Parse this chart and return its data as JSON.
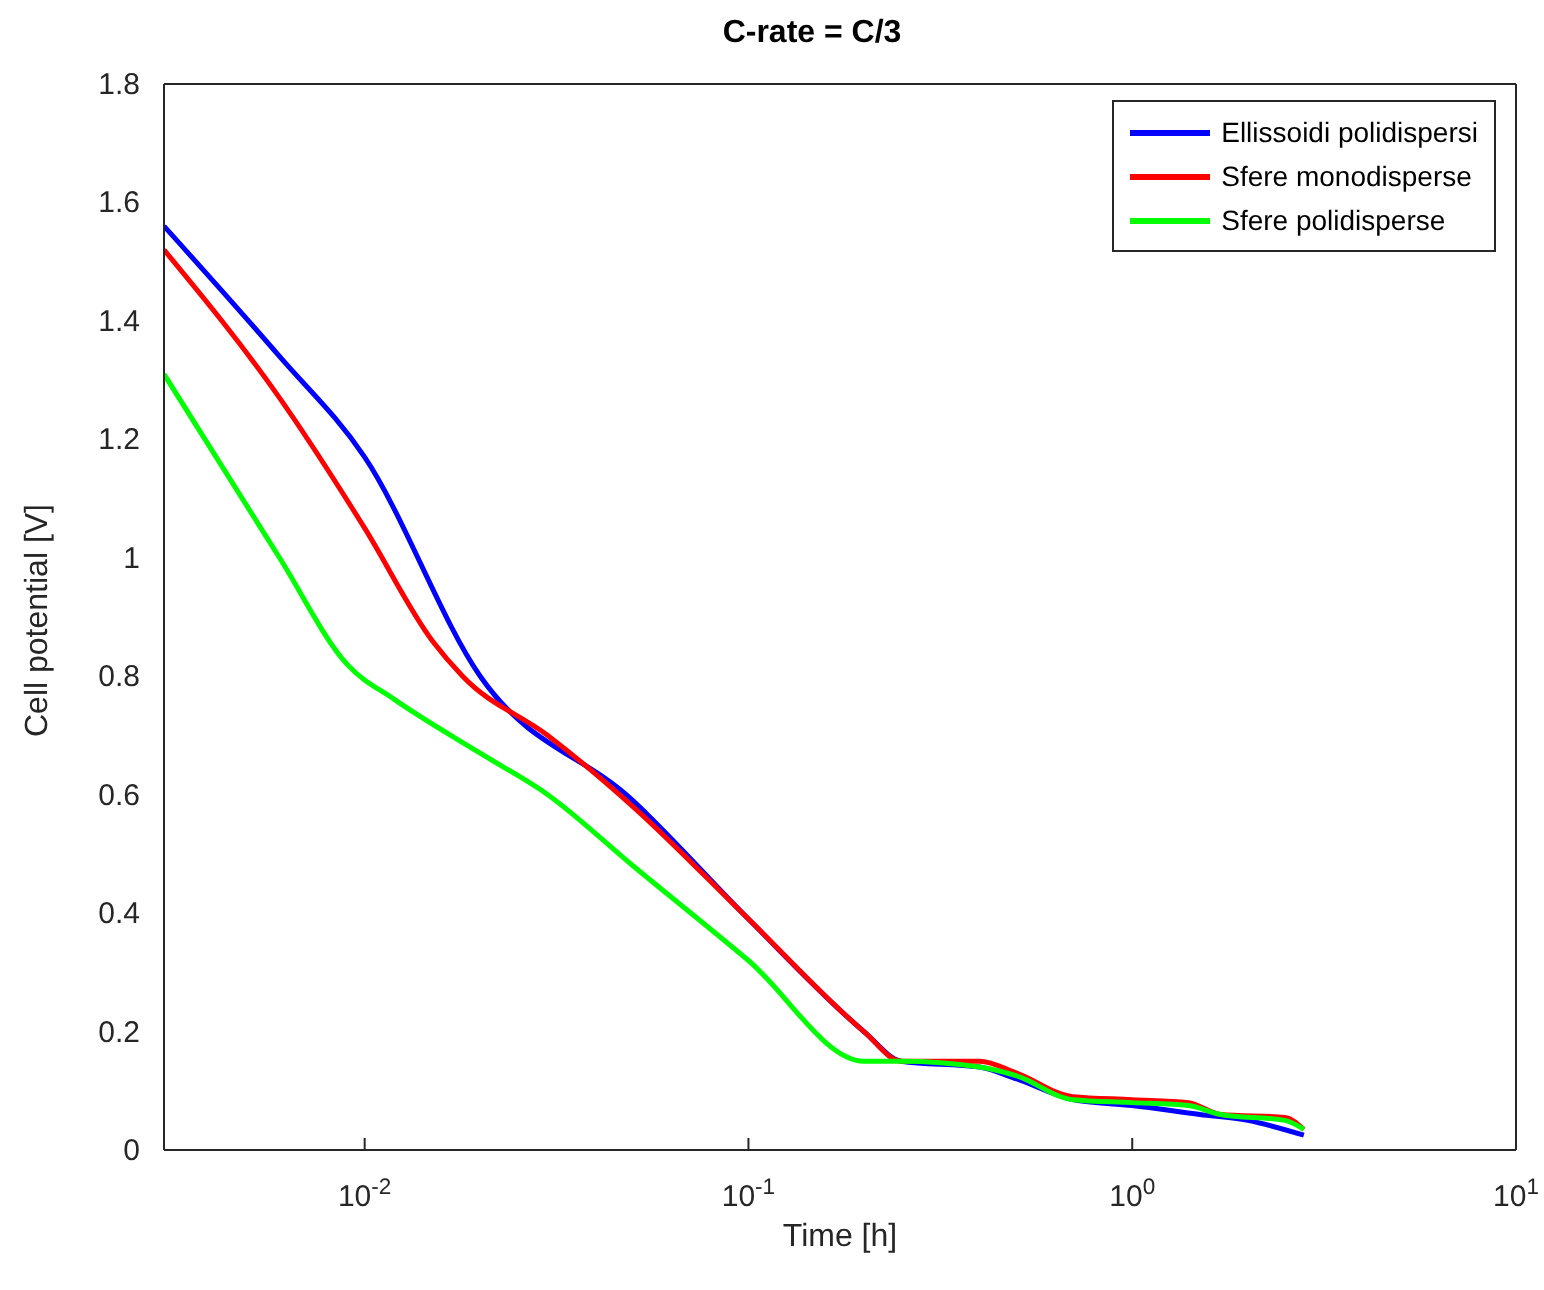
{
  "chart_data": {
    "type": "line",
    "title": "C-rate = C/3",
    "xlabel": "Time [h]",
    "ylabel": "Cell potential [V]",
    "log": "x",
    "xlim": [
      0.003,
      10
    ],
    "xticks": [
      {
        "value": 0.01,
        "label": "10$^{-2}$"
      },
      {
        "value": 0.1,
        "label": "10$^{-1}$"
      },
      {
        "value": 1,
        "label": "10$^{0}$"
      },
      {
        "value": 10,
        "label": "10$^{1}$"
      }
    ],
    "ylim": [
      0,
      1.8
    ],
    "yticks": [
      0,
      0.2,
      0.4,
      0.6,
      0.8,
      1,
      1.2,
      1.4,
      1.6,
      1.8
    ],
    "legend": "top right",
    "marker": "none",
    "line_style": "solid",
    "series": [
      {
        "name": "Ellissoidi polidispersi",
        "color": "#0000ff",
        "x": [
          0.003,
          0.006,
          0.01,
          0.02,
          0.05,
          0.1,
          0.2,
          0.25,
          0.4,
          0.5,
          0.7,
          1,
          1.5,
          2,
          2.8
        ],
        "values": [
          1.56,
          1.34,
          1.17,
          0.8,
          0.59,
          0.39,
          0.2,
          0.15,
          0.14,
          0.12,
          0.085,
          0.075,
          0.06,
          0.05,
          0.025
        ]
      },
      {
        "name": "Sfere monodisperse",
        "color": "#ff0000",
        "x": [
          0.003,
          0.006,
          0.01,
          0.015,
          0.018,
          0.03,
          0.05,
          0.1,
          0.2,
          0.25,
          0.4,
          0.5,
          0.7,
          1,
          1.4,
          1.7,
          2.5,
          2.8
        ],
        "values": [
          1.52,
          1.27,
          1.05,
          0.86,
          0.8,
          0.7,
          0.58,
          0.39,
          0.2,
          0.15,
          0.15,
          0.13,
          0.09,
          0.085,
          0.08,
          0.06,
          0.055,
          0.035
        ]
      },
      {
        "name": "Sfere polidisperse",
        "color": "#00ff00",
        "x": [
          0.003,
          0.006,
          0.009,
          0.012,
          0.02,
          0.03,
          0.05,
          0.1,
          0.2,
          0.25,
          0.4,
          0.5,
          0.7,
          1,
          1.4,
          1.7,
          2.5,
          2.8
        ],
        "values": [
          1.31,
          1.0,
          0.82,
          0.76,
          0.67,
          0.6,
          0.48,
          0.32,
          0.15,
          0.15,
          0.14,
          0.125,
          0.085,
          0.08,
          0.075,
          0.06,
          0.05,
          0.035
        ]
      }
    ]
  }
}
